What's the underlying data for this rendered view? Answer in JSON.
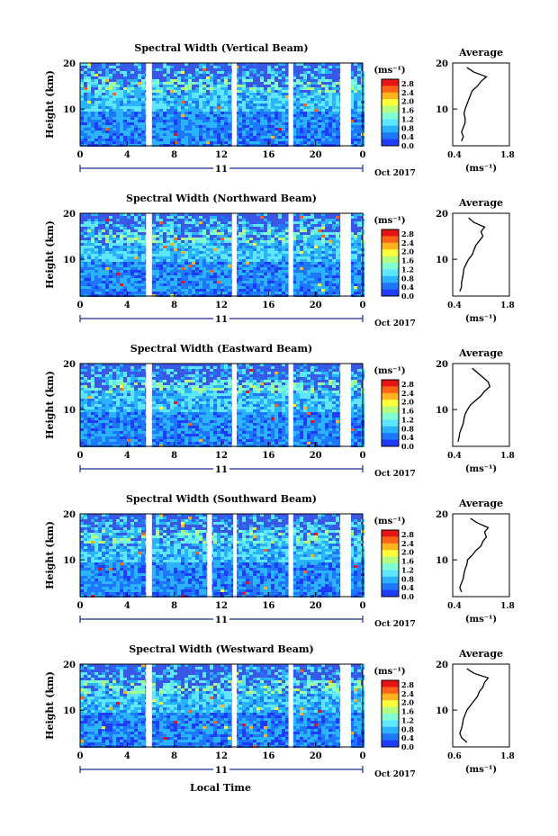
{
  "figure": {
    "xlabel": "Local Time",
    "date_label": "Oct 2017",
    "day_label": "11",
    "ylabel": "Height (km)",
    "cbar_unit": "(ms⁻¹)",
    "avg_title": "Average",
    "avg_xlabel": "(ms⁻¹)"
  },
  "colors": {
    "colormap": [
      "#2a2a6e",
      "#1e3cff",
      "#1e78ff",
      "#2ab4ff",
      "#5fe6ff",
      "#7fffd2",
      "#b4ff7f",
      "#ffff3c",
      "#ffb41e",
      "#ff6414",
      "#e61414"
    ],
    "background_fill": "#3a58e8"
  },
  "chart_data": [
    {
      "type": "heatmap",
      "title": "Spectral Width (Vertical Beam)",
      "x_ticks": [
        "0",
        "4",
        "8",
        "12",
        "16",
        "20",
        "0"
      ],
      "y_ticks": [
        "20",
        "10"
      ],
      "xlim": [
        0,
        24
      ],
      "ylim": [
        2,
        20
      ],
      "colorbar": {
        "ticks": [
          "2.8",
          "2.4",
          "2.0",
          "1.6",
          "1.2",
          "0.8",
          "0.4",
          "0.0"
        ],
        "range": [
          0,
          3.0
        ]
      },
      "data_gaps_hours": [
        [
          5.6,
          6.1
        ],
        [
          12.9,
          13.3
        ],
        [
          17.7,
          18.1
        ],
        [
          22.1,
          23.0
        ]
      ],
      "average_profile": {
        "title": "Average",
        "x_ticks": [
          "0.4",
          "1.8"
        ],
        "xlim": [
          0.3,
          1.9
        ],
        "y_ticks": [
          "20",
          "10"
        ],
        "ylim": [
          2,
          20
        ],
        "height": [
          3,
          4,
          5,
          6,
          7,
          8,
          9,
          10,
          11,
          12,
          13,
          14,
          15,
          16,
          17,
          18,
          19
        ],
        "value": [
          0.55,
          0.6,
          0.55,
          0.6,
          0.65,
          0.65,
          0.62,
          0.65,
          0.7,
          0.75,
          0.8,
          0.85,
          1.0,
          1.1,
          1.25,
          0.9,
          0.7
        ]
      }
    },
    {
      "type": "heatmap",
      "title": "Spectral Width (Northward Beam)",
      "x_ticks": [
        "0",
        "4",
        "8",
        "12",
        "16",
        "20",
        "0"
      ],
      "y_ticks": [
        "20",
        "10"
      ],
      "xlim": [
        0,
        24
      ],
      "ylim": [
        2,
        20
      ],
      "colorbar": {
        "ticks": [
          "2.8",
          "2.4",
          "2.0",
          "1.6",
          "1.2",
          "0.8",
          "0.4",
          "0.0"
        ],
        "range": [
          0,
          3.0
        ]
      },
      "data_gaps_hours": [
        [
          5.6,
          6.1
        ],
        [
          12.9,
          13.3
        ],
        [
          17.7,
          18.1
        ],
        [
          22.1,
          23.0
        ]
      ],
      "average_profile": {
        "title": "Average",
        "x_ticks": [
          "0.4",
          "1.8"
        ],
        "xlim": [
          0.3,
          1.9
        ],
        "y_ticks": [
          "20",
          "10"
        ],
        "ylim": [
          2,
          20
        ],
        "height": [
          3,
          4,
          5,
          6,
          7,
          8,
          9,
          10,
          11,
          12,
          13,
          14,
          15,
          16,
          17,
          18,
          19
        ],
        "value": [
          0.5,
          0.55,
          0.55,
          0.58,
          0.6,
          0.62,
          0.68,
          0.75,
          0.85,
          0.9,
          0.95,
          1.05,
          1.15,
          1.1,
          1.2,
          0.9,
          0.75
        ]
      }
    },
    {
      "type": "heatmap",
      "title": "Spectral Width (Eastward Beam)",
      "x_ticks": [
        "0",
        "4",
        "8",
        "12",
        "16",
        "20",
        "0"
      ],
      "y_ticks": [
        "20",
        "10"
      ],
      "xlim": [
        0,
        24
      ],
      "ylim": [
        2,
        20
      ],
      "colorbar": {
        "ticks": [
          "2.8",
          "2.4",
          "2.0",
          "1.6",
          "1.2",
          "0.8",
          "0.4",
          "0.0"
        ],
        "range": [
          0,
          3.0
        ]
      },
      "data_gaps_hours": [
        [
          5.6,
          6.1
        ],
        [
          12.9,
          13.3
        ],
        [
          17.7,
          18.1
        ],
        [
          22.1,
          23.0
        ]
      ],
      "average_profile": {
        "title": "Average",
        "x_ticks": [
          "0.4",
          "1.8"
        ],
        "xlim": [
          0.3,
          1.9
        ],
        "y_ticks": [
          "20",
          "10"
        ],
        "ylim": [
          2,
          20
        ],
        "height": [
          3,
          4,
          5,
          6,
          7,
          8,
          9,
          10,
          11,
          12,
          13,
          14,
          15,
          16,
          17,
          18,
          19
        ],
        "value": [
          0.45,
          0.48,
          0.5,
          0.55,
          0.6,
          0.62,
          0.65,
          0.72,
          0.8,
          0.95,
          1.1,
          1.2,
          1.35,
          1.3,
          1.15,
          1.0,
          0.85
        ]
      }
    },
    {
      "type": "heatmap",
      "title": "Spectral Width (Southward Beam)",
      "x_ticks": [
        "0",
        "4",
        "8",
        "12",
        "16",
        "20",
        "0"
      ],
      "y_ticks": [
        "20",
        "10"
      ],
      "xlim": [
        0,
        24
      ],
      "ylim": [
        2,
        20
      ],
      "colorbar": {
        "ticks": [
          "2.8",
          "2.4",
          "2.0",
          "1.6",
          "1.2",
          "0.8",
          "0.4",
          "0.0"
        ],
        "range": [
          0,
          3.0
        ]
      },
      "data_gaps_hours": [
        [
          5.6,
          6.1
        ],
        [
          10.8,
          11.2
        ],
        [
          13.0,
          13.3
        ],
        [
          17.7,
          18.1
        ],
        [
          22.1,
          23.0
        ]
      ],
      "average_profile": {
        "title": "Average",
        "x_ticks": [
          "0.4",
          "1.8"
        ],
        "xlim": [
          0.3,
          1.9
        ],
        "y_ticks": [
          "20",
          "10"
        ],
        "ylim": [
          2,
          20
        ],
        "height": [
          3,
          4,
          5,
          6,
          7,
          8,
          9,
          10,
          11,
          12,
          13,
          14,
          15,
          16,
          17,
          18,
          19
        ],
        "value": [
          0.55,
          0.5,
          0.55,
          0.6,
          0.62,
          0.65,
          0.7,
          0.72,
          0.85,
          0.95,
          1.1,
          1.15,
          1.25,
          1.2,
          1.3,
          1.0,
          0.8
        ]
      }
    },
    {
      "type": "heatmap",
      "title": "Spectral Width (Westward Beam)",
      "x_ticks": [
        "0",
        "4",
        "8",
        "12",
        "16",
        "20",
        "0"
      ],
      "y_ticks": [
        "20",
        "10"
      ],
      "xlim": [
        0,
        24
      ],
      "ylim": [
        2,
        20
      ],
      "colorbar": {
        "ticks": [
          "2.8",
          "2.4",
          "2.0",
          "1.6",
          "1.2",
          "0.8",
          "0.4",
          "0.0"
        ],
        "range": [
          0,
          3.0
        ]
      },
      "data_gaps_hours": [
        [
          5.6,
          6.1
        ],
        [
          12.9,
          13.3
        ],
        [
          17.7,
          18.1
        ],
        [
          22.1,
          23.0
        ]
      ],
      "average_profile": {
        "title": "Average",
        "x_ticks": [
          "0.6",
          "1.8"
        ],
        "xlim": [
          0.3,
          1.9
        ],
        "y_ticks": [
          "20",
          "10"
        ],
        "ylim": [
          2,
          20
        ],
        "height": [
          3,
          4,
          5,
          6,
          7,
          8,
          9,
          10,
          11,
          12,
          13,
          14,
          15,
          16,
          17,
          18,
          19
        ],
        "value": [
          0.7,
          0.55,
          0.5,
          0.55,
          0.58,
          0.6,
          0.65,
          0.7,
          0.8,
          0.9,
          1.0,
          1.05,
          1.15,
          1.2,
          1.3,
          0.9,
          0.7
        ]
      }
    }
  ]
}
